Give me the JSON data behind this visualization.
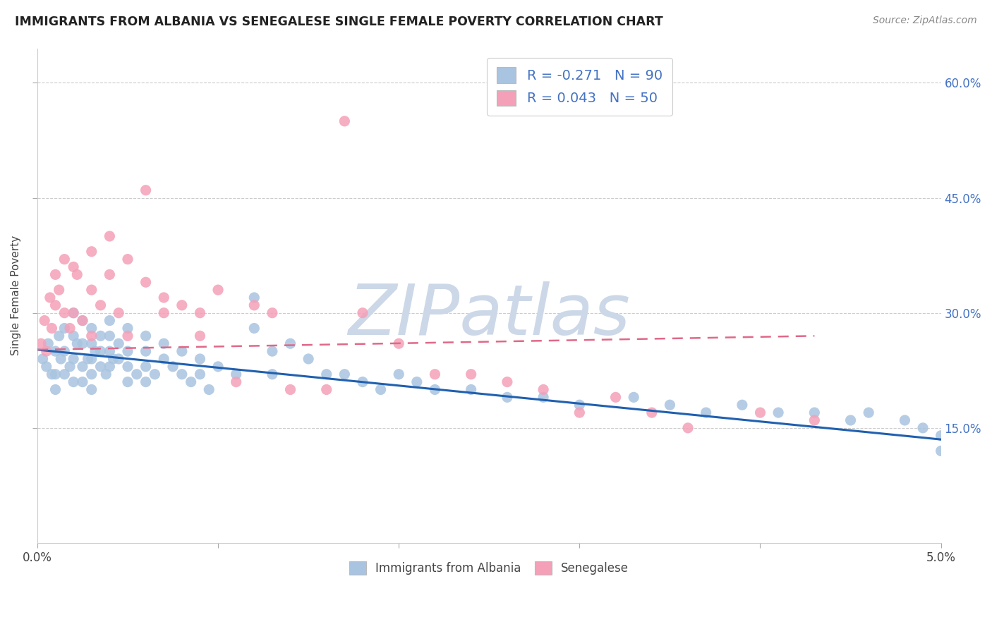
{
  "title": "IMMIGRANTS FROM ALBANIA VS SENEGALESE SINGLE FEMALE POVERTY CORRELATION CHART",
  "source": "Source: ZipAtlas.com",
  "ylabel": "Single Female Poverty",
  "ylabel_ticks": [
    "15.0%",
    "30.0%",
    "45.0%",
    "60.0%"
  ],
  "ylabel_tick_vals": [
    0.15,
    0.3,
    0.45,
    0.6
  ],
  "xlim": [
    0.0,
    0.05
  ],
  "ylim": [
    0.0,
    0.645
  ],
  "r_albania": -0.271,
  "n_albania": 90,
  "r_senegal": 0.043,
  "n_senegal": 50,
  "color_albania": "#a8c4e0",
  "color_senegal": "#f4a0b8",
  "line_color_albania": "#2060b0",
  "line_color_senegal": "#e06888",
  "watermark_text": "ZIPatlas",
  "watermark_color": "#ccd8e8",
  "albania_x": [
    0.0003,
    0.0005,
    0.0006,
    0.0008,
    0.001,
    0.001,
    0.001,
    0.0012,
    0.0013,
    0.0015,
    0.0015,
    0.0015,
    0.0018,
    0.002,
    0.002,
    0.002,
    0.002,
    0.0022,
    0.0025,
    0.0025,
    0.0025,
    0.0025,
    0.0028,
    0.003,
    0.003,
    0.003,
    0.003,
    0.003,
    0.0032,
    0.0035,
    0.0035,
    0.0035,
    0.0038,
    0.004,
    0.004,
    0.004,
    0.004,
    0.0042,
    0.0045,
    0.0045,
    0.005,
    0.005,
    0.005,
    0.005,
    0.0055,
    0.006,
    0.006,
    0.006,
    0.006,
    0.0065,
    0.007,
    0.007,
    0.0075,
    0.008,
    0.008,
    0.0085,
    0.009,
    0.009,
    0.0095,
    0.01,
    0.011,
    0.012,
    0.012,
    0.013,
    0.013,
    0.014,
    0.015,
    0.016,
    0.017,
    0.018,
    0.019,
    0.02,
    0.021,
    0.022,
    0.024,
    0.026,
    0.028,
    0.03,
    0.033,
    0.035,
    0.037,
    0.039,
    0.041,
    0.043,
    0.045,
    0.046,
    0.048,
    0.049,
    0.05,
    0.05
  ],
  "albania_y": [
    0.24,
    0.23,
    0.26,
    0.22,
    0.25,
    0.22,
    0.2,
    0.27,
    0.24,
    0.28,
    0.25,
    0.22,
    0.23,
    0.3,
    0.27,
    0.24,
    0.21,
    0.26,
    0.29,
    0.26,
    0.23,
    0.21,
    0.24,
    0.28,
    0.26,
    0.24,
    0.22,
    0.2,
    0.25,
    0.27,
    0.25,
    0.23,
    0.22,
    0.29,
    0.27,
    0.25,
    0.23,
    0.24,
    0.26,
    0.24,
    0.28,
    0.25,
    0.23,
    0.21,
    0.22,
    0.27,
    0.25,
    0.23,
    0.21,
    0.22,
    0.26,
    0.24,
    0.23,
    0.25,
    0.22,
    0.21,
    0.24,
    0.22,
    0.2,
    0.23,
    0.22,
    0.32,
    0.28,
    0.25,
    0.22,
    0.26,
    0.24,
    0.22,
    0.22,
    0.21,
    0.2,
    0.22,
    0.21,
    0.2,
    0.2,
    0.19,
    0.19,
    0.18,
    0.19,
    0.18,
    0.17,
    0.18,
    0.17,
    0.17,
    0.16,
    0.17,
    0.16,
    0.15,
    0.14,
    0.12
  ],
  "senegal_x": [
    0.0002,
    0.0004,
    0.0005,
    0.0007,
    0.0008,
    0.001,
    0.001,
    0.0012,
    0.0015,
    0.0015,
    0.0018,
    0.002,
    0.002,
    0.0022,
    0.0025,
    0.003,
    0.003,
    0.003,
    0.0035,
    0.004,
    0.004,
    0.0045,
    0.005,
    0.005,
    0.006,
    0.006,
    0.007,
    0.007,
    0.008,
    0.009,
    0.009,
    0.01,
    0.011,
    0.012,
    0.013,
    0.014,
    0.016,
    0.017,
    0.018,
    0.02,
    0.022,
    0.024,
    0.026,
    0.028,
    0.03,
    0.032,
    0.034,
    0.036,
    0.04,
    0.043
  ],
  "senegal_y": [
    0.26,
    0.29,
    0.25,
    0.32,
    0.28,
    0.35,
    0.31,
    0.33,
    0.37,
    0.3,
    0.28,
    0.36,
    0.3,
    0.35,
    0.29,
    0.38,
    0.33,
    0.27,
    0.31,
    0.4,
    0.35,
    0.3,
    0.37,
    0.27,
    0.34,
    0.46,
    0.32,
    0.3,
    0.31,
    0.3,
    0.27,
    0.33,
    0.21,
    0.31,
    0.3,
    0.2,
    0.2,
    0.55,
    0.3,
    0.26,
    0.22,
    0.22,
    0.21,
    0.2,
    0.17,
    0.19,
    0.17,
    0.15,
    0.17,
    0.16
  ],
  "line_alb_x0": 0.0,
  "line_alb_y0": 0.252,
  "line_alb_x1": 0.05,
  "line_alb_y1": 0.135,
  "line_sen_x0": 0.0,
  "line_sen_y0": 0.252,
  "line_sen_x1": 0.043,
  "line_sen_y1": 0.27
}
